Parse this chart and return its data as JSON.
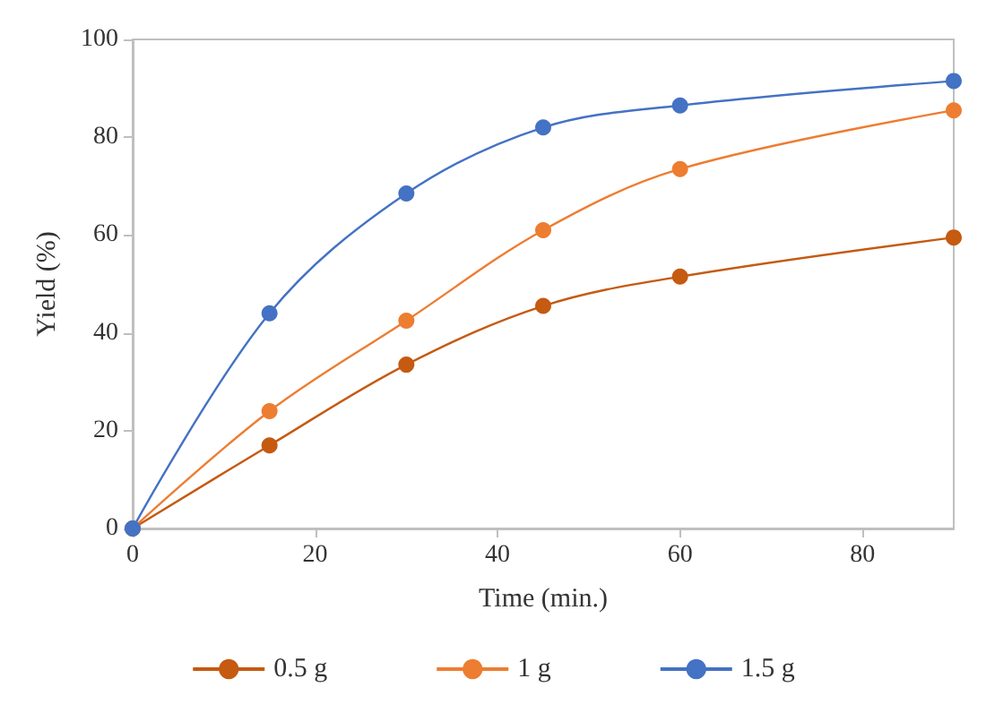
{
  "chart_data": {
    "type": "line",
    "xlabel": "Time (min.)",
    "ylabel": "Yield (%)",
    "x": [
      0,
      15,
      30,
      45,
      60,
      90
    ],
    "series": [
      {
        "name": "0.5 g",
        "color": "#c55a11",
        "values": [
          0,
          17,
          33.5,
          45.5,
          51.5,
          59.5
        ]
      },
      {
        "name": "1 g",
        "color": "#ed7d31",
        "values": [
          0,
          24,
          42.5,
          61,
          73.5,
          85.5
        ]
      },
      {
        "name": "1.5 g",
        "color": "#4472c4",
        "values": [
          0,
          44,
          68.5,
          82,
          86.5,
          91.5
        ]
      }
    ],
    "xlim": [
      0,
      90
    ],
    "xticks": [
      0,
      20,
      40,
      60,
      80
    ],
    "ylim": [
      0,
      100
    ],
    "yticks": [
      0,
      20,
      40,
      60,
      80,
      100
    ],
    "grid": false,
    "legend": "bottom",
    "marker": "circle",
    "line_style": "solid"
  }
}
